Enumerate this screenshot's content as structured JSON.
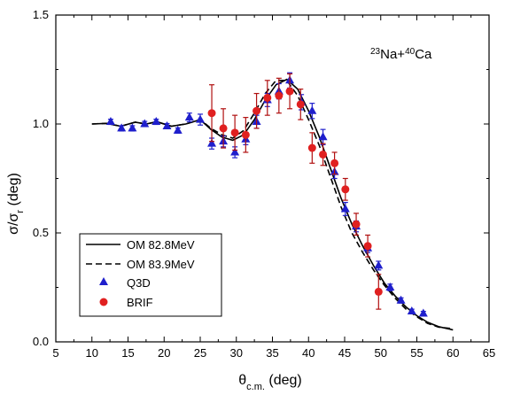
{
  "chart_data": {
    "type": "scatter",
    "xlabel": "θ",
    "xlabel_sub": "c.m.",
    "xlabel_unit": " (deg)",
    "ylabel": "σ/σ",
    "ylabel_sub": "r",
    "ylabel_unit": " (deg)",
    "xlim": [
      5,
      65
    ],
    "ylim": [
      0.0,
      1.5
    ],
    "xticks": [
      "5",
      "10",
      "15",
      "20",
      "25",
      "30",
      "35",
      "40",
      "45",
      "50",
      "55",
      "60",
      "65"
    ],
    "yticks": [
      "0.0",
      "0.5",
      "1.0",
      "1.5"
    ],
    "annotation": {
      "base1": "Na+",
      "sup1": "23",
      "sup2": "40",
      "base2": "Ca"
    },
    "legend_position": "bottom-left",
    "grid": false,
    "series": [
      {
        "name": "OM 82.8MeV",
        "kind": "line",
        "style": "solid",
        "color": "#000000",
        "x": [
          10,
          12,
          14,
          16,
          17.5,
          19,
          21,
          23,
          25,
          26.5,
          28,
          29.5,
          31,
          32.5,
          34,
          35.5,
          37,
          38.5,
          40,
          41.5,
          43,
          44.5,
          46,
          47.5,
          49,
          50.5,
          52,
          53.5,
          55,
          56.5,
          58,
          60
        ],
        "y": [
          1.0,
          1.003,
          0.99,
          1.008,
          1.0,
          1.01,
          0.99,
          1.0,
          1.02,
          0.975,
          0.94,
          0.925,
          0.95,
          1.02,
          1.11,
          1.18,
          1.205,
          1.16,
          1.06,
          0.94,
          0.8,
          0.66,
          0.54,
          0.44,
          0.35,
          0.27,
          0.21,
          0.16,
          0.12,
          0.09,
          0.07,
          0.055
        ]
      },
      {
        "name": "OM 83.9MeV",
        "kind": "line",
        "style": "dashed",
        "color": "#000000",
        "x": [
          10,
          12,
          14,
          16,
          17.5,
          19,
          21,
          23,
          25,
          26.5,
          28,
          29.5,
          31,
          32.5,
          34,
          35.5,
          37,
          38.5,
          40,
          41.5,
          43,
          44.5,
          46,
          47.5,
          49,
          50.5,
          52,
          53.5,
          55,
          56.5,
          58,
          60
        ],
        "y": [
          1.0,
          1.003,
          0.99,
          1.008,
          1.0,
          1.01,
          0.99,
          1.0,
          1.02,
          0.98,
          0.95,
          0.935,
          0.97,
          1.05,
          1.14,
          1.2,
          1.2,
          1.13,
          1.02,
          0.9,
          0.76,
          0.62,
          0.5,
          0.41,
          0.33,
          0.26,
          0.2,
          0.15,
          0.115,
          0.085,
          0.068,
          0.06
        ]
      },
      {
        "name": "Q3D",
        "kind": "markers",
        "marker": "triangle",
        "color": "#1f1fcc",
        "x": [
          12.6,
          14.1,
          15.6,
          17.3,
          18.9,
          20.4,
          21.9,
          23.5,
          25.0,
          26.6,
          28.2,
          29.8,
          31.3,
          32.8,
          34.3,
          35.9,
          37.4,
          39.0,
          40.5,
          42.0,
          43.6,
          45.1,
          46.6,
          48.2,
          49.7,
          51.3,
          52.8,
          54.3,
          55.9
        ],
        "y": [
          1.01,
          0.98,
          0.98,
          1.0,
          1.01,
          0.99,
          0.97,
          1.03,
          1.02,
          0.91,
          0.92,
          0.87,
          0.93,
          1.01,
          1.11,
          1.15,
          1.2,
          1.1,
          1.06,
          0.94,
          0.78,
          0.61,
          0.53,
          0.43,
          0.35,
          0.25,
          0.19,
          0.14,
          0.13
        ],
        "err": [
          0.012,
          0.012,
          0.012,
          0.012,
          0.012,
          0.012,
          0.012,
          0.02,
          0.025,
          0.025,
          0.025,
          0.025,
          0.025,
          0.03,
          0.03,
          0.035,
          0.035,
          0.035,
          0.035,
          0.035,
          0.03,
          0.03,
          0.025,
          0.02,
          0.02,
          0.015,
          0.012,
          0.01,
          0.01
        ]
      },
      {
        "name": "BRIF",
        "kind": "markers",
        "marker": "circle",
        "color": "#e02020",
        "errcolor": "#b01010",
        "x": [
          26.6,
          28.2,
          29.8,
          31.3,
          32.8,
          34.3,
          35.9,
          37.4,
          38.9,
          40.5,
          42.0,
          43.6,
          45.1,
          46.6,
          48.2,
          49.7
        ],
        "y": [
          1.05,
          0.98,
          0.96,
          0.95,
          1.06,
          1.12,
          1.13,
          1.15,
          1.09,
          0.89,
          0.86,
          0.82,
          0.7,
          0.54,
          0.44,
          0.23
        ],
        "err": [
          0.13,
          0.09,
          0.08,
          0.08,
          0.08,
          0.08,
          0.08,
          0.08,
          0.07,
          0.07,
          0.05,
          0.05,
          0.05,
          0.05,
          0.05,
          0.08
        ]
      }
    ]
  }
}
